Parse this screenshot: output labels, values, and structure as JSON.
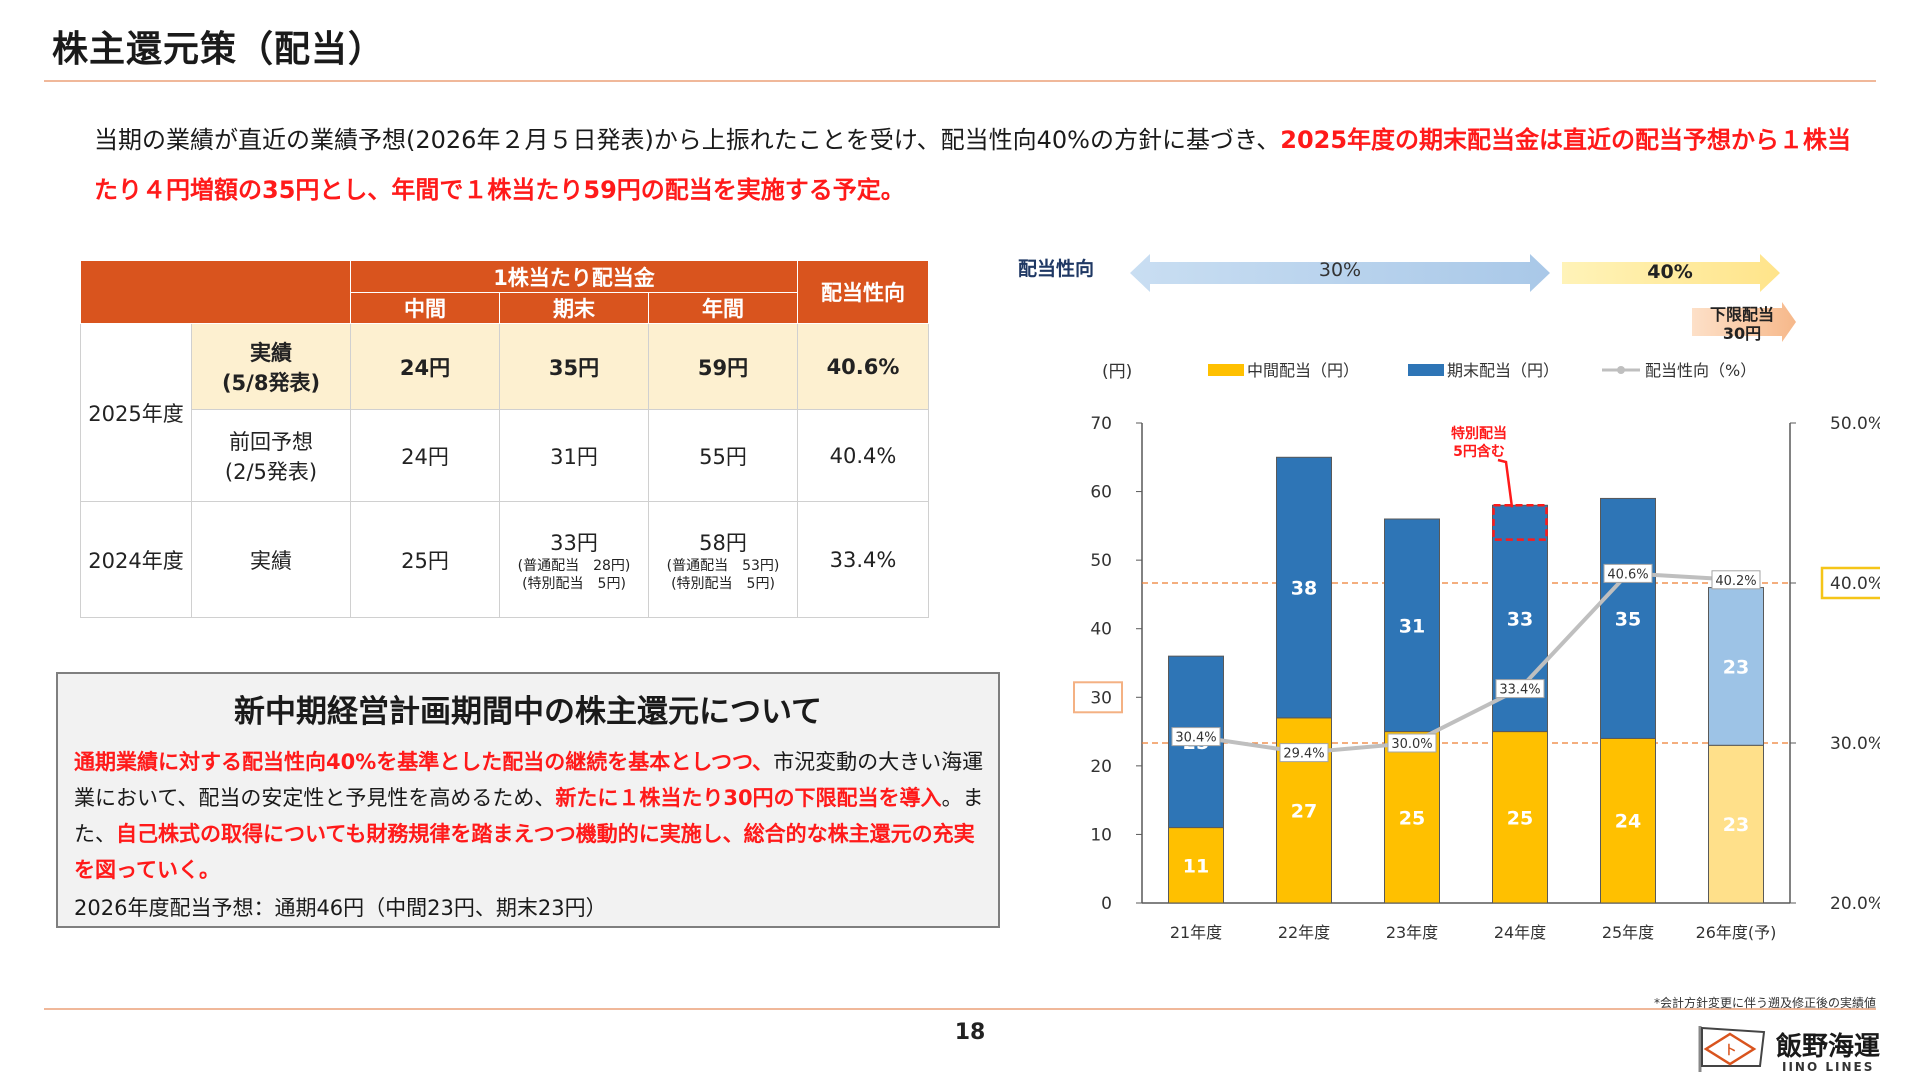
{
  "page": {
    "title": "株主還元策（配当）",
    "lead_normal": "当期の業績が直近の業績予想(2026年２月５日発表)から上振れたことを受け、配当性向40%の方針に基づき、",
    "lead_highlight": "2025年度の期末配当金は直近の配当予想から１株当たり４円増額の35円とし、年間で１株当たり59円の配当を実施する予定。",
    "page_number": "18",
    "footnote": "*会計方針変更に伴う遡及修正後の実績値",
    "logo_name": "飯野海運",
    "logo_sub": "IINO LINES"
  },
  "table": {
    "header_group": "1株当たり配当金",
    "col_interim": "中間",
    "col_year_end": "期末",
    "col_annual": "年間",
    "col_payout": "配当性向",
    "fy2025": "2025年度",
    "fy2024": "2024年度",
    "rows": [
      {
        "label1": "実績",
        "label2": "(5/8発表)",
        "interim": "24円",
        "year_end": "35円",
        "annual": "59円",
        "payout": "40.6%"
      },
      {
        "label1": "前回予想",
        "label2": "(2/5発表)",
        "interim": "24円",
        "year_end": "31円",
        "annual": "55円",
        "payout": "40.4%"
      },
      {
        "label1": "実績",
        "label2": "",
        "interim": "25円",
        "year_end": "33円",
        "year_end_sub1": "(普通配当　28円)",
        "year_end_sub2": "(特別配当　5円)",
        "annual": "58円",
        "annual_sub1": "(普通配当　53円)",
        "annual_sub2": "(特別配当　5円)",
        "payout": "33.4%"
      }
    ]
  },
  "box": {
    "title": "新中期経営計画期間中の株主還元について",
    "p1_hl": "通期業績に対する配当性向40%を基準とした配当の継続を基本としつつ、",
    "p1_normal": "市況変動の大きい海運業において、配当の安定性と予見性を高めるため、",
    "p2_hl": "新たに１株当たり30円の下限配当を導入",
    "p2_normal": "。また、",
    "p3_hl": "自己株式の取得についても財務規律を踏まえつつ機動的に実施し、総合的な株主還元の充実を図っていく。",
    "footer": "2026年度配当予想：通期46円（中間23円、期末23円）"
  },
  "policy": {
    "label": "配当性向",
    "arrow1": "30%",
    "arrow2": "40%",
    "floor_line1": "下限配当",
    "floor_line2": "30円"
  },
  "chart_data": {
    "type": "bar",
    "categories": [
      "21年度",
      "22年度",
      "23年度",
      "24年度",
      "25年度",
      "26年度(予)"
    ],
    "series": [
      {
        "name": "中間配当（円）",
        "values": [
          11,
          27,
          25,
          25,
          24,
          23
        ],
        "color": "#ffc000"
      },
      {
        "name": "期末配当（円）",
        "values": [
          25,
          38,
          31,
          33,
          35,
          23
        ],
        "color": "#2e75b6"
      },
      {
        "name": "配当性向（%）",
        "type": "line",
        "axis": "right",
        "values": [
          30.4,
          29.4,
          30.0,
          33.4,
          40.6,
          40.2
        ],
        "labels": [
          "30.4%",
          "29.4%",
          "30.0%",
          "33.4%",
          "40.6%",
          "40.2%"
        ],
        "color": "#bfbfbf"
      }
    ],
    "forecast_colors": {
      "interim": "#ffe08a",
      "year_end": "#9dc3e6"
    },
    "ylabel": "(円)",
    "ylim": [
      0,
      70
    ],
    "yticks": [
      "0",
      "10",
      "20",
      "30",
      "40",
      "50",
      "60",
      "70"
    ],
    "y2lim": [
      20,
      50
    ],
    "y2ticks": [
      "20.0%",
      "30.0%",
      "40.0%",
      "50.0%"
    ],
    "y2_highlight": "40.0%",
    "y_highlight": "30",
    "ref_lines_y": [
      23.33,
      46.67
    ],
    "annotation": {
      "text_line1": "特別配当",
      "text_line2": "5円含む",
      "category_index": 3,
      "range": [
        53,
        58
      ]
    },
    "legend": "top"
  }
}
